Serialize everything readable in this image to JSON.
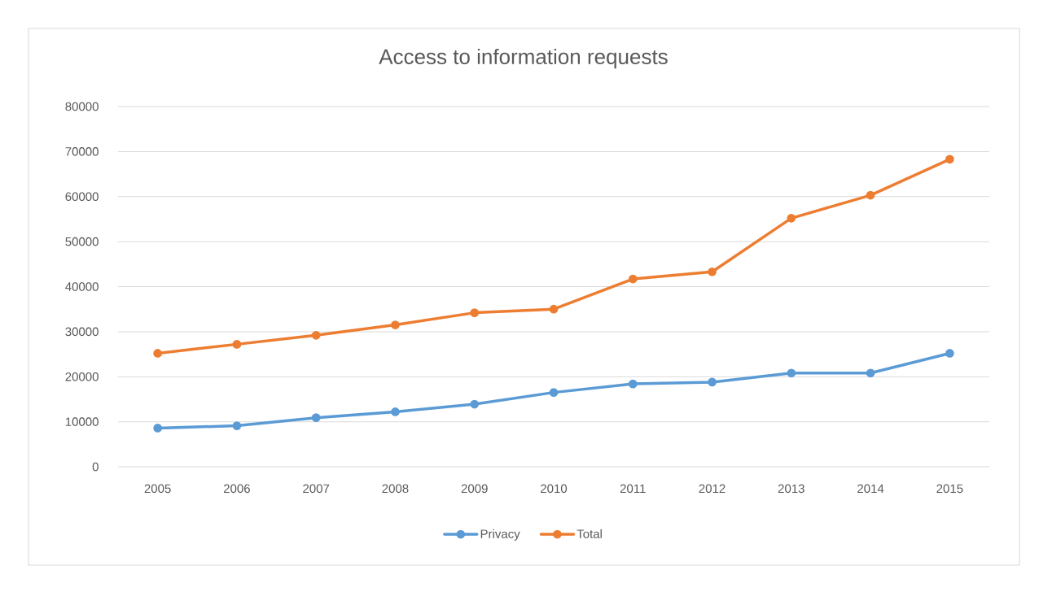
{
  "chart_data": {
    "type": "line",
    "title": "Access to information requests",
    "categories": [
      "2005",
      "2006",
      "2007",
      "2008",
      "2009",
      "2010",
      "2011",
      "2012",
      "2013",
      "2014",
      "2015"
    ],
    "series": [
      {
        "name": "Privacy",
        "color": "#5b9bd5",
        "values": [
          8600,
          9100,
          10900,
          12200,
          13900,
          16500,
          18400,
          18800,
          20800,
          20800,
          25200
        ]
      },
      {
        "name": "Total",
        "color": "#ed7d31",
        "values": [
          25200,
          27200,
          29200,
          31500,
          34200,
          35000,
          41700,
          43300,
          55200,
          60300,
          68300
        ]
      }
    ],
    "ylim": [
      0,
      80000
    ],
    "yticks": [
      0,
      10000,
      20000,
      30000,
      40000,
      50000,
      60000,
      70000,
      80000
    ],
    "grid": "y",
    "legend": "bottom",
    "marker": "circle",
    "line_style": "solid"
  }
}
